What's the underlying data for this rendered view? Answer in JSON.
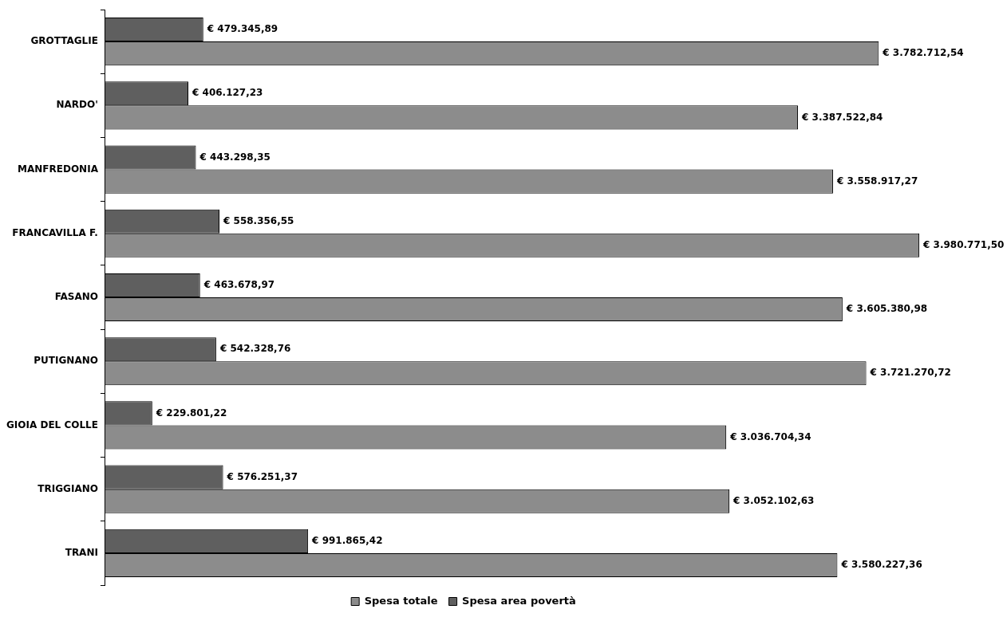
{
  "chart_data": {
    "type": "bar",
    "orientation": "horizontal",
    "categories": [
      "GROTTAGLIE",
      "NARDO'",
      "MANFREDONIA",
      "FRANCAVILLA F.",
      "FASANO",
      "PUTIGNANO",
      "GIOIA DEL COLLE",
      "TRIGGIANO",
      "TRANI"
    ],
    "series": [
      {
        "name": "Spesa area povertà",
        "color": "#5f5f5f",
        "values": [
          479345.89,
          406127.23,
          443298.35,
          558356.55,
          463678.97,
          542328.76,
          229801.22,
          576251.37,
          991865.42
        ],
        "value_labels": [
          "€ 479.345,89",
          "€ 406.127,23",
          "€ 443.298,35",
          "€ 558.356,55",
          "€ 463.678,97",
          "€ 542.328,76",
          "€ 229.801,22",
          "€ 576.251,37",
          "€ 991.865,42"
        ]
      },
      {
        "name": "Spesa totale",
        "color": "#8c8c8c",
        "values": [
          3782712.54,
          3387522.84,
          3558917.27,
          3980771.5,
          3605380.98,
          3721270.72,
          3036704.34,
          3052102.63,
          3580227.36
        ],
        "value_labels": [
          "€ 3.782.712,54",
          "€ 3.387.522,84",
          "€ 3.558.917,27",
          "€ 3.980.771,50",
          "€ 3.605.380,98",
          "€ 3.721.270,72",
          "€ 3.036.704,34",
          "€ 3.052.102,63",
          "€ 3.580.227,36"
        ]
      }
    ],
    "tick_labels": "y",
    "legend": "bottom"
  }
}
